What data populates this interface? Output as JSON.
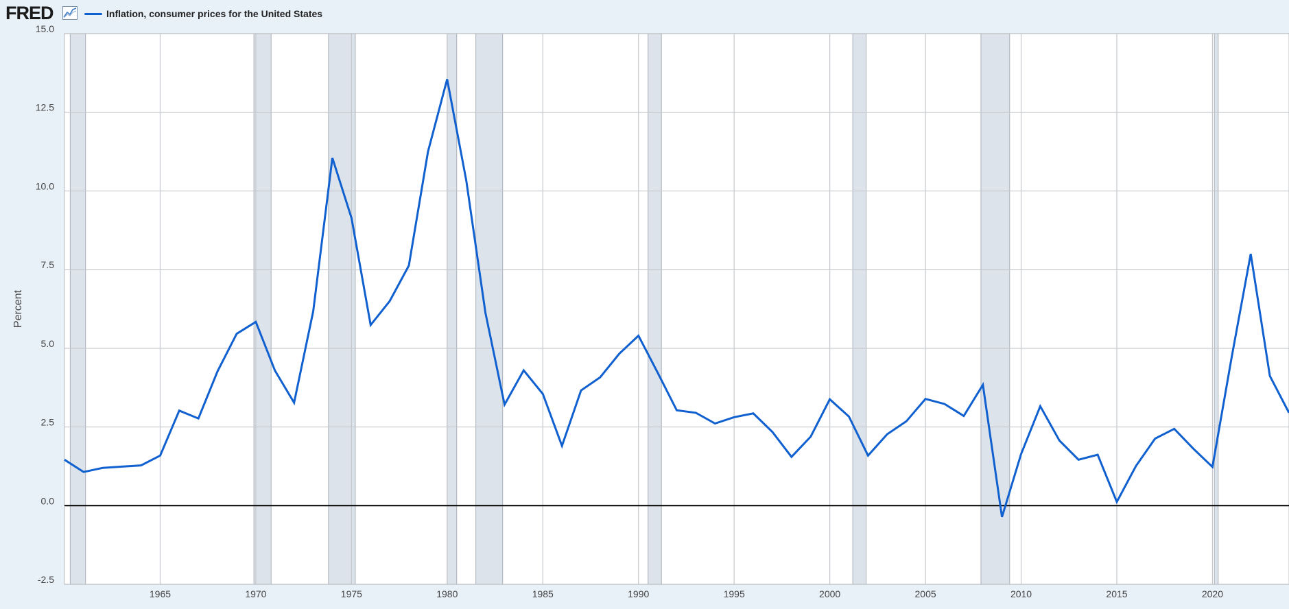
{
  "header": {
    "logo_text": "FRED",
    "logo_icon": "line-chart-icon"
  },
  "colors": {
    "series": "#1060d0",
    "recession": "#dde3ea",
    "grid": "#c4c8cc",
    "zero_line": "#000000",
    "background": "#e8f0f8",
    "plot_background": "#ffffff"
  },
  "chart_data": {
    "type": "line",
    "title": "",
    "xlabel": "",
    "ylabel": "Percent",
    "xlim": [
      1960,
      2024
    ],
    "ylim": [
      -2.5,
      15
    ],
    "y_ticks": [
      -2.5,
      0,
      2.5,
      5,
      7.5,
      10,
      12.5,
      15
    ],
    "y_tick_labels": [
      "-2.5",
      "0.0",
      "2.5",
      "5.0",
      "7.5",
      "10.0",
      "12.5",
      "15.0"
    ],
    "x_ticks": [
      1965,
      1970,
      1975,
      1980,
      1985,
      1990,
      1995,
      2000,
      2005,
      2010,
      2015,
      2020
    ],
    "x_tick_labels": [
      "1965",
      "1970",
      "1975",
      "1980",
      "1985",
      "1990",
      "1995",
      "2000",
      "2005",
      "2010",
      "2015",
      "2020"
    ],
    "grid": true,
    "legend_position": "top-left",
    "series": [
      {
        "name": "Inflation, consumer prices for the United States",
        "x": [
          1960,
          1961,
          1962,
          1963,
          1964,
          1965,
          1966,
          1967,
          1968,
          1969,
          1970,
          1971,
          1972,
          1973,
          1974,
          1975,
          1976,
          1977,
          1978,
          1979,
          1980,
          1981,
          1982,
          1983,
          1984,
          1985,
          1986,
          1987,
          1988,
          1989,
          1990,
          1991,
          1992,
          1993,
          1994,
          1995,
          1996,
          1997,
          1998,
          1999,
          2000,
          2001,
          2002,
          2003,
          2004,
          2005,
          2006,
          2007,
          2008,
          2009,
          2010,
          2011,
          2012,
          2013,
          2014,
          2015,
          2016,
          2017,
          2018,
          2019,
          2020,
          2021,
          2022,
          2023,
          2024
        ],
        "values": [
          1.46,
          1.07,
          1.2,
          1.24,
          1.28,
          1.59,
          3.02,
          2.77,
          4.27,
          5.46,
          5.84,
          4.29,
          3.27,
          6.18,
          11.05,
          9.14,
          5.74,
          6.5,
          7.63,
          11.25,
          13.55,
          10.33,
          6.13,
          3.21,
          4.3,
          3.55,
          1.9,
          3.66,
          4.08,
          4.83,
          5.4,
          4.23,
          3.03,
          2.95,
          2.61,
          2.81,
          2.93,
          2.34,
          1.55,
          2.19,
          3.38,
          2.83,
          1.59,
          2.27,
          2.68,
          3.39,
          3.23,
          2.85,
          3.84,
          -0.36,
          1.64,
          3.16,
          2.07,
          1.46,
          1.62,
          0.12,
          1.26,
          2.13,
          2.44,
          1.81,
          1.23,
          4.7,
          8.0,
          4.12,
          2.95
        ]
      }
    ],
    "recessions": [
      [
        1960.3,
        1961.1
      ],
      [
        1969.9,
        1970.8
      ],
      [
        1973.8,
        1975.2
      ],
      [
        1980.0,
        1980.5
      ],
      [
        1981.5,
        1982.9
      ],
      [
        1990.5,
        1991.2
      ],
      [
        2001.2,
        2001.9
      ],
      [
        2007.9,
        2009.4
      ],
      [
        2020.1,
        2020.3
      ]
    ]
  }
}
